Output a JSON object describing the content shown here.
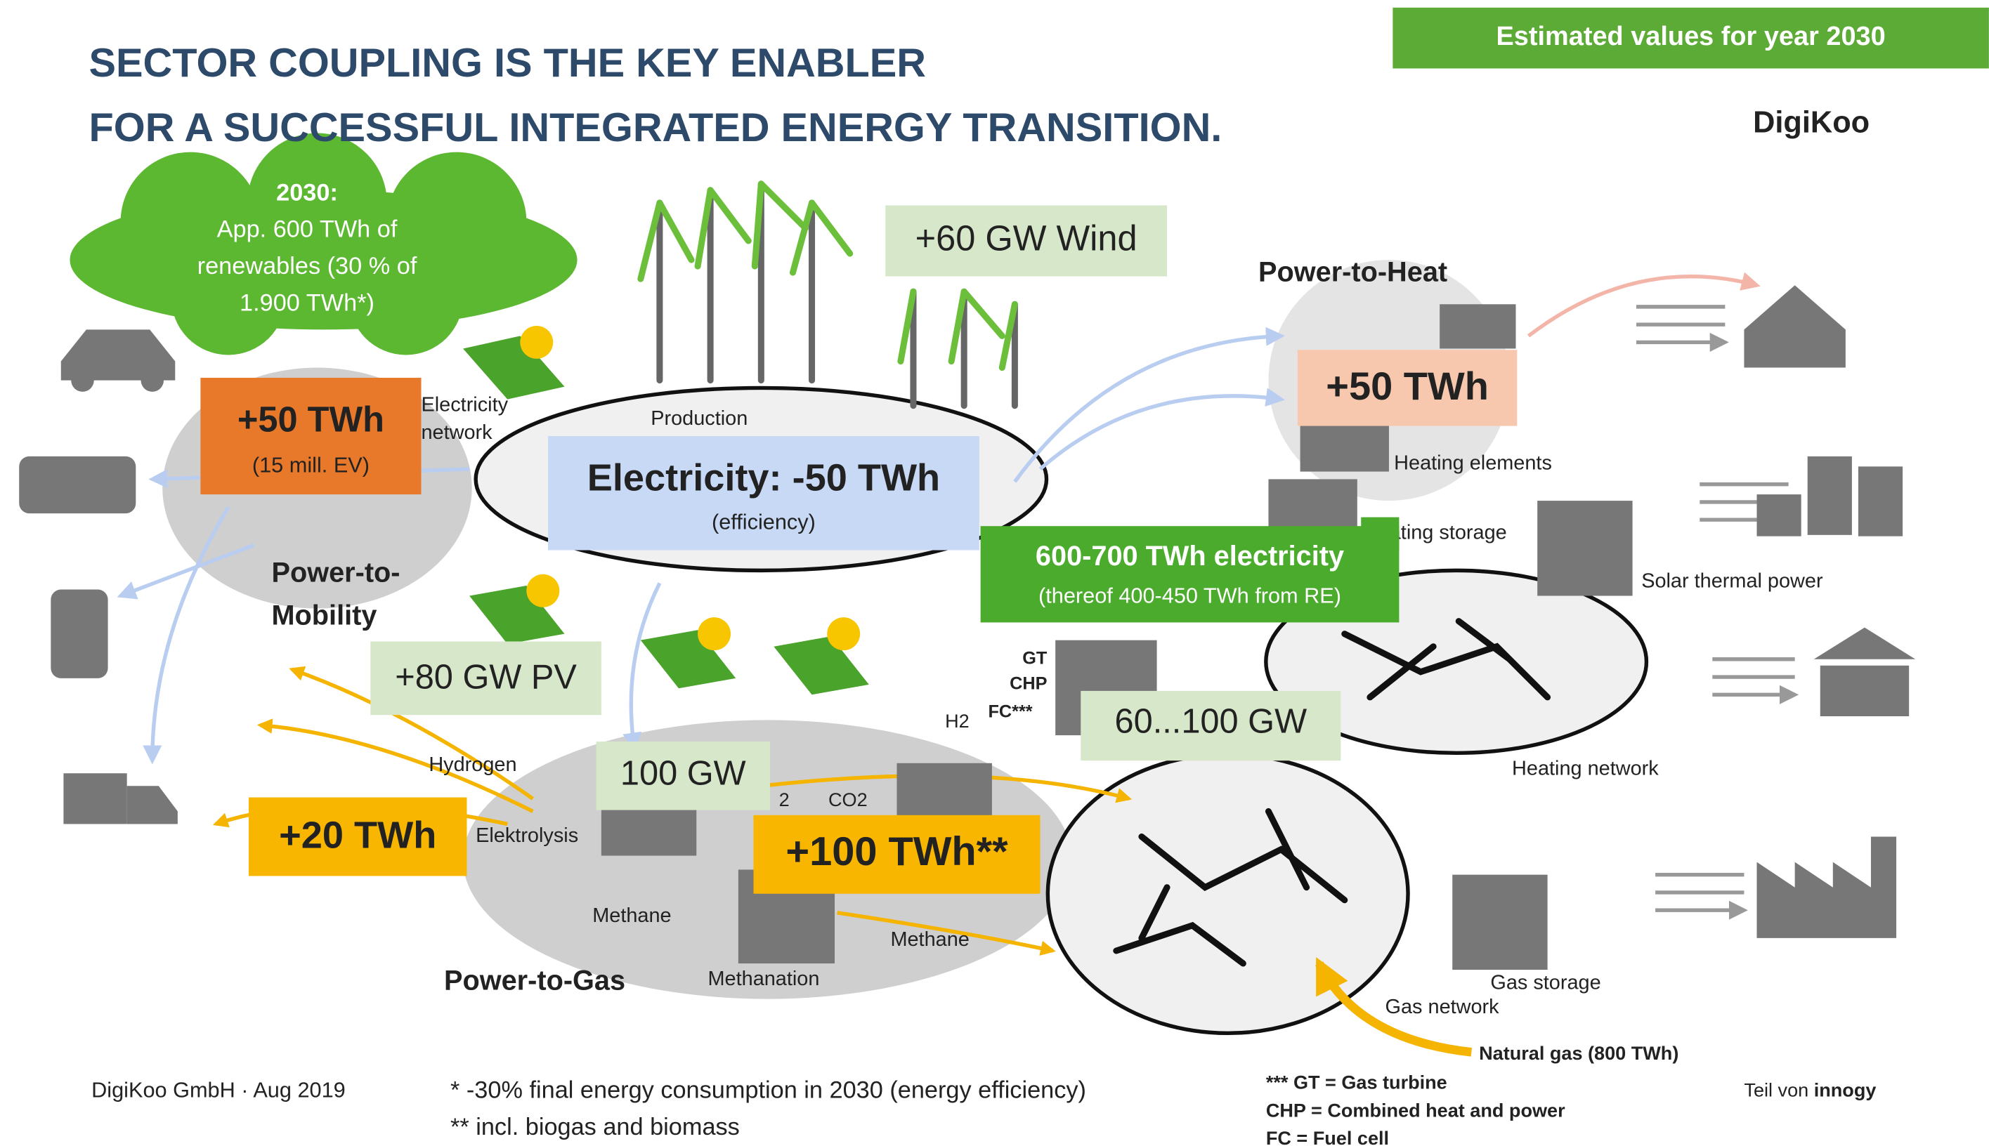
{
  "header": {
    "title": [
      "SECTOR COUPLING IS THE KEY ENABLER",
      "FOR A SUCCESSFUL INTEGRATED ENERGY TRANSITION."
    ],
    "badge": "Estimated values for year 2030",
    "logo": "DigiKoo"
  },
  "cloud": [
    "2030:",
    "App. 600 TWh of",
    "renewables (30 % of",
    "1.900 TWh*)"
  ],
  "boxes": [
    {
      "text": "+60 GW Wind"
    },
    {
      "text": "+50 TWh",
      "note": "(15 mill. EV)"
    },
    {
      "text": "Electricity: -50 TWh",
      "note": "(efficiency)"
    },
    {
      "text": "+50 TWh"
    },
    {
      "text": "600-700 TWh electricity",
      "note": "(thereof 400-450 TWh from RE)"
    },
    {
      "text": "+80 GW PV"
    },
    {
      "text": "100 GW"
    },
    {
      "text": "60...100 GW"
    },
    {
      "text": "+20 TWh"
    },
    {
      "text": "+100 TWh**"
    }
  ],
  "labels": [
    "Power-to-Heat",
    "Electricity",
    "network",
    "Production",
    "Power-to-",
    "Mobility",
    "Heating elements",
    "Heating storage",
    "Solar thermal power",
    "GT",
    "CHP",
    "FC***",
    "H2",
    "Hydrogen",
    "Elektrolysis",
    "2",
    "CO2",
    "Methane",
    "Methane",
    "Methanation",
    "Power-to-Gas",
    "Heating network",
    "Gas storage",
    "Gas network",
    "Natural gas   (800 TWh)"
  ],
  "footer": {
    "company": "DigiKoo GmbH · Aug 2019",
    "notes": [
      "*  -30% final energy consumption in 2030 (energy efficiency)",
      "** incl. biogas and biomass"
    ],
    "legend": [
      "*** GT = Gas turbine",
      "CHP = Combined heat and power",
      "FC = Fuel cell"
    ],
    "brand_prefix": "Teil von",
    "brand": "innogy"
  }
}
